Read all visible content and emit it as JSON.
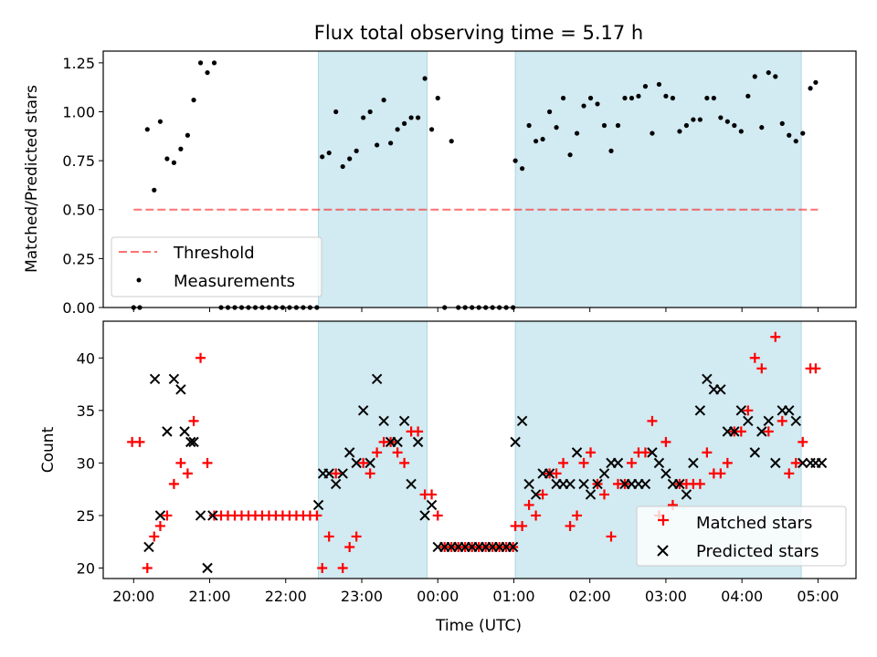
{
  "figure_title": "Flux total observing time = 5.17 h",
  "colors": {
    "shade": "#add8e6",
    "threshold": "#ff0000",
    "measurement": "#000000",
    "matched": "#ff0000",
    "predicted": "#000000"
  },
  "chart_data": [
    {
      "type": "scatter",
      "ylabel": "Matched/Predicted stars",
      "ylim": [
        0,
        1.31
      ],
      "yticks": [
        0.0,
        0.25,
        0.5,
        0.75,
        1.0,
        1.25
      ],
      "ytick_labels": [
        "0.00",
        "0.25",
        "0.50",
        "0.75",
        "1.00",
        "1.25"
      ],
      "xlim_hours": [
        -0.4,
        9.5
      ],
      "shaded_ranges_hours": [
        [
          2.43,
          3.86
        ],
        [
          5.02,
          8.78
        ]
      ],
      "legend": {
        "placement": "lower-left",
        "entries": [
          "Threshold",
          "Measurements"
        ]
      },
      "threshold": {
        "label": "Threshold",
        "value": 0.5,
        "x_range_hours": [
          0.0,
          9.0
        ],
        "style": "dashed"
      },
      "series": [
        {
          "name": "Measurements",
          "x_hours": [
            0.0,
            0.08,
            0.18,
            0.27,
            0.35,
            0.44,
            0.53,
            0.62,
            0.71,
            0.79,
            0.88,
            0.97,
            1.06,
            1.15,
            1.24,
            1.33,
            1.42,
            1.51,
            1.6,
            1.69,
            1.78,
            1.87,
            1.96,
            2.05,
            2.14,
            2.23,
            2.32,
            2.41,
            2.48,
            2.57,
            2.66,
            2.75,
            2.84,
            2.93,
            3.02,
            3.11,
            3.2,
            3.29,
            3.38,
            3.47,
            3.56,
            3.65,
            3.74,
            3.83,
            3.92,
            4.0,
            4.09,
            4.18,
            4.27,
            4.36,
            4.45,
            4.54,
            4.63,
            4.72,
            4.81,
            4.9,
            4.99,
            5.02,
            5.11,
            5.2,
            5.29,
            5.38,
            5.47,
            5.56,
            5.65,
            5.74,
            5.83,
            5.92,
            6.01,
            6.1,
            6.19,
            6.28,
            6.37,
            6.46,
            6.55,
            6.64,
            6.73,
            6.82,
            6.91,
            7.0,
            7.09,
            7.18,
            7.27,
            7.36,
            7.45,
            7.54,
            7.63,
            7.72,
            7.81,
            7.9,
            7.99,
            8.08,
            8.17,
            8.26,
            8.35,
            8.44,
            8.53,
            8.62,
            8.71,
            8.8,
            8.9,
            8.97
          ],
          "y": [
            0.0,
            0.0,
            0.91,
            0.6,
            0.95,
            0.76,
            0.74,
            0.81,
            0.88,
            1.06,
            1.25,
            1.2,
            1.25,
            0.0,
            0.0,
            0.0,
            0.0,
            0.0,
            0.0,
            0.0,
            0.0,
            0.0,
            0.0,
            0.0,
            0.0,
            0.0,
            0.0,
            0.0,
            0.77,
            0.79,
            1.0,
            0.72,
            0.76,
            0.8,
            0.97,
            1.0,
            0.83,
            1.06,
            0.84,
            0.91,
            0.94,
            0.97,
            0.97,
            1.17,
            0.91,
            1.07,
            0.0,
            0.85,
            0.0,
            0.0,
            0.0,
            0.0,
            0.0,
            0.0,
            0.0,
            0.0,
            0.0,
            0.75,
            0.71,
            0.93,
            0.85,
            0.86,
            1.0,
            0.92,
            1.07,
            0.78,
            0.89,
            1.03,
            1.07,
            1.04,
            0.93,
            0.8,
            0.93,
            1.07,
            1.07,
            1.08,
            1.13,
            0.89,
            1.14,
            1.08,
            1.07,
            0.9,
            0.93,
            0.96,
            0.96,
            1.07,
            1.07,
            0.97,
            0.95,
            0.93,
            0.9,
            1.08,
            1.18,
            0.92,
            1.2,
            1.18,
            0.94,
            0.88,
            0.85,
            0.89,
            1.12,
            1.15
          ]
        }
      ]
    },
    {
      "type": "scatter",
      "xlabel": "Time (UTC)",
      "ylabel": "Count",
      "ylim": [
        19,
        43.5
      ],
      "yticks": [
        20,
        25,
        30,
        35,
        40
      ],
      "ytick_labels": [
        "20",
        "25",
        "30",
        "35",
        "40"
      ],
      "xlim_hours": [
        -0.4,
        9.5
      ],
      "xticks_hours": [
        0,
        1,
        2,
        3,
        4,
        5,
        6,
        7,
        8,
        9
      ],
      "xtick_labels": [
        "20:00",
        "21:00",
        "22:00",
        "23:00",
        "00:00",
        "01:00",
        "02:00",
        "03:00",
        "04:00",
        "05:00"
      ],
      "shaded_ranges_hours": [
        [
          2.43,
          3.86
        ],
        [
          5.02,
          8.78
        ]
      ],
      "legend": {
        "placement": "lower-right",
        "entries": [
          "Matched stars",
          "Predicted stars"
        ]
      },
      "series": [
        {
          "name": "Matched stars",
          "marker": "plus",
          "x_hours": [
            -0.02,
            0.08,
            0.18,
            0.27,
            0.35,
            0.44,
            0.53,
            0.62,
            0.71,
            0.79,
            0.88,
            0.97,
            1.06,
            1.15,
            1.24,
            1.33,
            1.42,
            1.51,
            1.6,
            1.69,
            1.78,
            1.87,
            1.96,
            2.05,
            2.14,
            2.23,
            2.32,
            2.41,
            2.48,
            2.57,
            2.66,
            2.75,
            2.84,
            2.93,
            3.02,
            3.11,
            3.2,
            3.29,
            3.38,
            3.47,
            3.56,
            3.65,
            3.74,
            3.83,
            3.92,
            4.0,
            4.09,
            4.18,
            4.27,
            4.36,
            4.45,
            4.54,
            4.63,
            4.72,
            4.81,
            4.9,
            4.99,
            5.02,
            5.11,
            5.2,
            5.29,
            5.38,
            5.47,
            5.56,
            5.65,
            5.74,
            5.83,
            5.92,
            6.01,
            6.1,
            6.19,
            6.28,
            6.37,
            6.46,
            6.55,
            6.64,
            6.73,
            6.82,
            6.91,
            7.0,
            7.09,
            7.18,
            7.27,
            7.36,
            7.45,
            7.54,
            7.63,
            7.72,
            7.81,
            7.9,
            7.99,
            8.08,
            8.17,
            8.26,
            8.35,
            8.44,
            8.53,
            8.62,
            8.71,
            8.8,
            8.9,
            8.97
          ],
          "y": [
            32,
            32,
            20,
            23,
            24,
            25,
            28,
            30,
            29,
            34,
            40,
            30,
            25,
            25,
            25,
            25,
            25,
            25,
            25,
            25,
            25,
            25,
            25,
            25,
            25,
            25,
            25,
            25,
            20,
            23,
            29,
            20,
            22,
            23,
            30,
            29,
            31,
            32,
            32,
            31,
            30,
            33,
            33,
            27,
            27,
            25,
            22,
            22,
            22,
            22,
            22,
            22,
            22,
            22,
            22,
            22,
            22,
            24,
            24,
            26,
            25,
            27,
            29,
            29,
            30,
            24,
            25,
            30,
            31,
            28,
            27,
            23,
            28,
            28,
            30,
            31,
            31,
            34,
            25,
            32,
            26,
            28,
            28,
            28,
            28,
            31,
            29,
            29,
            30,
            33,
            33,
            35,
            40,
            39,
            33,
            42,
            34,
            29,
            30,
            32,
            39,
            39
          ]
        },
        {
          "name": "Predicted stars",
          "marker": "x",
          "x_hours": [
            0.2,
            0.28,
            0.35,
            0.44,
            0.53,
            0.62,
            0.67,
            0.75,
            0.79,
            0.88,
            0.97,
            1.04,
            2.43,
            2.49,
            2.57,
            2.66,
            2.75,
            2.84,
            2.93,
            3.02,
            3.11,
            3.2,
            3.29,
            3.38,
            3.47,
            3.56,
            3.65,
            3.74,
            3.83,
            3.92,
            4.0,
            4.09,
            4.18,
            4.27,
            4.36,
            4.45,
            4.54,
            4.63,
            4.72,
            4.81,
            4.9,
            4.99,
            5.02,
            5.11,
            5.2,
            5.29,
            5.38,
            5.47,
            5.56,
            5.65,
            5.74,
            5.83,
            5.92,
            6.01,
            6.1,
            6.19,
            6.28,
            6.37,
            6.46,
            6.55,
            6.64,
            6.73,
            6.82,
            6.91,
            7.0,
            7.09,
            7.18,
            7.27,
            7.36,
            7.45,
            7.54,
            7.63,
            7.72,
            7.81,
            7.9,
            7.99,
            8.08,
            8.17,
            8.26,
            8.35,
            8.44,
            8.53,
            8.62,
            8.71,
            8.8,
            8.9,
            8.97,
            9.05
          ],
          "y": [
            22,
            38,
            25,
            33,
            38,
            37,
            33,
            32,
            32,
            25,
            20,
            25,
            26,
            29,
            29,
            28,
            29,
            31,
            30,
            35,
            30,
            38,
            34,
            32,
            32,
            34,
            28,
            32,
            25,
            26,
            22,
            22,
            22,
            22,
            22,
            22,
            22,
            22,
            22,
            22,
            22,
            22,
            32,
            34,
            28,
            27,
            29,
            29,
            28,
            28,
            28,
            31,
            28,
            27,
            28,
            29,
            30,
            30,
            28,
            28,
            28,
            28,
            31,
            30,
            29,
            28,
            28,
            27,
            30,
            35,
            38,
            37,
            37,
            33,
            33,
            35,
            34,
            31,
            33,
            34,
            30,
            35,
            35,
            34,
            30,
            30,
            30,
            30
          ]
        }
      ]
    }
  ]
}
